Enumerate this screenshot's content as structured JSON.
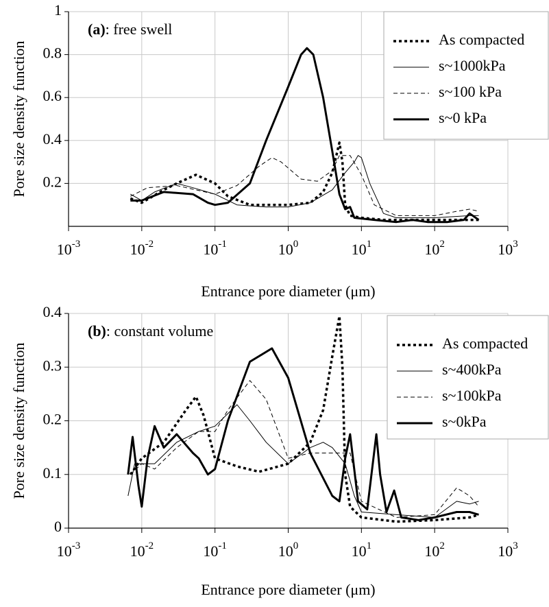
{
  "chart_data": [
    {
      "type": "line",
      "annotation": "(a): free swell",
      "x_label": "Entrance pore diameter (μm)",
      "y_label": "Pore size density function",
      "xscale": "log",
      "xlim": [
        0.001,
        1000
      ],
      "xticks": [
        {
          "value": 0.001,
          "label": "10-3"
        },
        {
          "value": 0.01,
          "label": "10-2"
        },
        {
          "value": 0.1,
          "label": "10-1"
        },
        {
          "value": 1,
          "label": "100"
        },
        {
          "value": 10,
          "label": "101"
        },
        {
          "value": 100,
          "label": "102"
        },
        {
          "value": 1000,
          "label": "103"
        }
      ],
      "ylim": [
        0,
        1
      ],
      "yticks": [
        0.2,
        0.4,
        0.6,
        0.8,
        1
      ],
      "grid": true,
      "legend": "upper right",
      "series": [
        {
          "name": "As compacted",
          "color": "#000",
          "style": "dotted",
          "width": 3.5,
          "x": [
            0.007,
            0.01,
            0.02,
            0.03,
            0.055,
            0.1,
            0.15,
            0.3,
            0.6,
            1,
            2,
            3,
            4,
            5,
            5.5,
            6,
            7,
            10,
            20,
            100,
            400
          ],
          "values": [
            0.13,
            0.11,
            0.17,
            0.2,
            0.24,
            0.2,
            0.14,
            0.1,
            0.1,
            0.1,
            0.11,
            0.16,
            0.25,
            0.39,
            0.3,
            0.1,
            0.05,
            0.04,
            0.03,
            0.03,
            0.03
          ]
        },
        {
          "name": "s~1000kPa",
          "color": "#000",
          "style": "solid",
          "width": 1,
          "x": [
            0.007,
            0.01,
            0.015,
            0.03,
            0.05,
            0.1,
            0.2,
            0.5,
            1,
            2,
            4,
            6,
            8,
            9,
            10,
            13,
            20,
            30,
            100,
            300,
            400
          ],
          "values": [
            0.15,
            0.12,
            0.16,
            0.2,
            0.18,
            0.15,
            0.1,
            0.09,
            0.09,
            0.11,
            0.17,
            0.25,
            0.3,
            0.33,
            0.32,
            0.2,
            0.06,
            0.04,
            0.04,
            0.05,
            0.05
          ]
        },
        {
          "name": "s~100 kPa",
          "color": "#000",
          "style": "dashed",
          "width": 1,
          "x": [
            0.007,
            0.012,
            0.03,
            0.1,
            0.2,
            0.4,
            0.6,
            0.8,
            1.5,
            2.5,
            4,
            5,
            7,
            10,
            15,
            30,
            100,
            200,
            300,
            400
          ],
          "values": [
            0.14,
            0.18,
            0.19,
            0.15,
            0.19,
            0.28,
            0.32,
            0.3,
            0.22,
            0.21,
            0.26,
            0.33,
            0.33,
            0.24,
            0.1,
            0.05,
            0.05,
            0.07,
            0.08,
            0.07
          ]
        },
        {
          "name": "s~0 kPa",
          "color": "#000",
          "style": "solid",
          "width": 3,
          "x": [
            0.007,
            0.01,
            0.02,
            0.05,
            0.08,
            0.1,
            0.15,
            0.3,
            0.5,
            1,
            1.5,
            1.8,
            2.2,
            3,
            4,
            5,
            6,
            7,
            8,
            15,
            30,
            50,
            80,
            150,
            250,
            300,
            400
          ],
          "values": [
            0.12,
            0.12,
            0.16,
            0.15,
            0.11,
            0.1,
            0.11,
            0.2,
            0.4,
            0.65,
            0.8,
            0.83,
            0.8,
            0.6,
            0.35,
            0.15,
            0.08,
            0.09,
            0.04,
            0.03,
            0.02,
            0.03,
            0.02,
            0.02,
            0.03,
            0.06,
            0.03
          ]
        }
      ]
    },
    {
      "type": "line",
      "annotation": "(b): constant volume",
      "x_label": "Entrance pore diameter (μm)",
      "y_label": "Pore size density function",
      "xscale": "log",
      "xlim": [
        0.001,
        1000
      ],
      "xticks": [
        {
          "value": 0.001,
          "label": "10-3"
        },
        {
          "value": 0.01,
          "label": "10-2"
        },
        {
          "value": 0.1,
          "label": "10-1"
        },
        {
          "value": 1,
          "label": "100"
        },
        {
          "value": 10,
          "label": "101"
        },
        {
          "value": 100,
          "label": "102"
        },
        {
          "value": 1000,
          "label": "103"
        }
      ],
      "ylim": [
        0,
        0.4
      ],
      "yticks": [
        0,
        0.1,
        0.2,
        0.3,
        0.4
      ],
      "grid": true,
      "legend": "upper right",
      "series": [
        {
          "name": "As compacted",
          "color": "#000",
          "style": "dotted",
          "width": 3.5,
          "x": [
            0.007,
            0.01,
            0.02,
            0.04,
            0.055,
            0.07,
            0.1,
            0.2,
            0.4,
            1,
            2,
            3,
            4,
            5,
            5.5,
            6,
            7,
            10,
            30,
            100,
            300,
            400
          ],
          "values": [
            0.1,
            0.13,
            0.16,
            0.22,
            0.245,
            0.21,
            0.13,
            0.115,
            0.105,
            0.12,
            0.16,
            0.22,
            0.32,
            0.395,
            0.3,
            0.1,
            0.04,
            0.02,
            0.012,
            0.015,
            0.02,
            0.025
          ]
        },
        {
          "name": "s~400kPa",
          "color": "#000",
          "style": "solid",
          "width": 1,
          "x": [
            0.0065,
            0.008,
            0.015,
            0.03,
            0.06,
            0.1,
            0.2,
            0.3,
            0.5,
            1,
            2,
            3,
            4,
            6,
            8,
            10,
            30,
            100,
            200,
            300,
            400
          ],
          "values": [
            0.06,
            0.12,
            0.12,
            0.16,
            0.18,
            0.19,
            0.23,
            0.2,
            0.16,
            0.12,
            0.15,
            0.16,
            0.15,
            0.12,
            0.06,
            0.03,
            0.025,
            0.02,
            0.05,
            0.045,
            0.05
          ]
        },
        {
          "name": "s~100kPa",
          "color": "#000",
          "style": "dashed",
          "width": 1,
          "x": [
            0.007,
            0.01,
            0.015,
            0.03,
            0.06,
            0.1,
            0.15,
            0.3,
            0.5,
            1,
            2,
            4,
            7,
            10,
            30,
            100,
            200,
            300,
            400
          ],
          "values": [
            0.1,
            0.12,
            0.11,
            0.15,
            0.18,
            0.18,
            0.22,
            0.275,
            0.24,
            0.13,
            0.14,
            0.14,
            0.14,
            0.05,
            0.02,
            0.025,
            0.075,
            0.06,
            0.04
          ]
        },
        {
          "name": "s~0kPa",
          "color": "#000",
          "style": "solid",
          "width": 3,
          "x": [
            0.0065,
            0.0075,
            0.009,
            0.01,
            0.012,
            0.015,
            0.02,
            0.03,
            0.05,
            0.06,
            0.08,
            0.1,
            0.15,
            0.3,
            0.6,
            1,
            2,
            4,
            5,
            6,
            7,
            9,
            12,
            16,
            18,
            22,
            28,
            35,
            60,
            100,
            200,
            300,
            400
          ],
          "values": [
            0.1,
            0.17,
            0.08,
            0.04,
            0.13,
            0.19,
            0.15,
            0.175,
            0.14,
            0.13,
            0.1,
            0.11,
            0.2,
            0.31,
            0.335,
            0.28,
            0.14,
            0.06,
            0.05,
            0.13,
            0.175,
            0.05,
            0.035,
            0.175,
            0.1,
            0.03,
            0.07,
            0.02,
            0.015,
            0.02,
            0.03,
            0.03,
            0.025
          ]
        }
      ]
    }
  ]
}
